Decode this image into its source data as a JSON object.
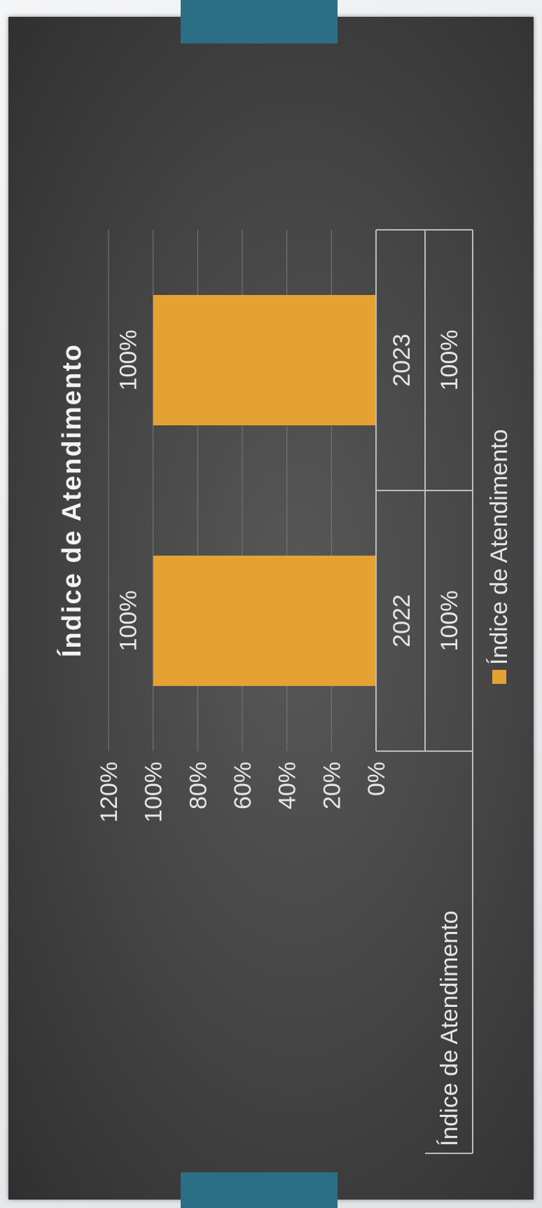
{
  "chart_data": {
    "type": "bar",
    "title": "Índice de Atendimento",
    "categories": [
      "2022",
      "2023"
    ],
    "series": [
      {
        "name": "Índice de Atendimento",
        "values": [
          100,
          100
        ],
        "labels": [
          "100%",
          "100%"
        ]
      }
    ],
    "yticks": [
      "0%",
      "20%",
      "40%",
      "60%",
      "80%",
      "100%",
      "120%"
    ],
    "ylim": [
      0,
      120
    ],
    "grid": true,
    "legend": "bottom",
    "data_table": {
      "row_label": "Índice de Atendimento",
      "values": [
        "100%",
        "100%"
      ]
    },
    "colors": {
      "bar": "#e5a233",
      "gridline": "#7a7a7a",
      "text": "#e6e6e6",
      "table_border": "#bdbdbd"
    }
  },
  "decor": {
    "accent": "#2b6e86",
    "slide_bg": "#474747"
  }
}
